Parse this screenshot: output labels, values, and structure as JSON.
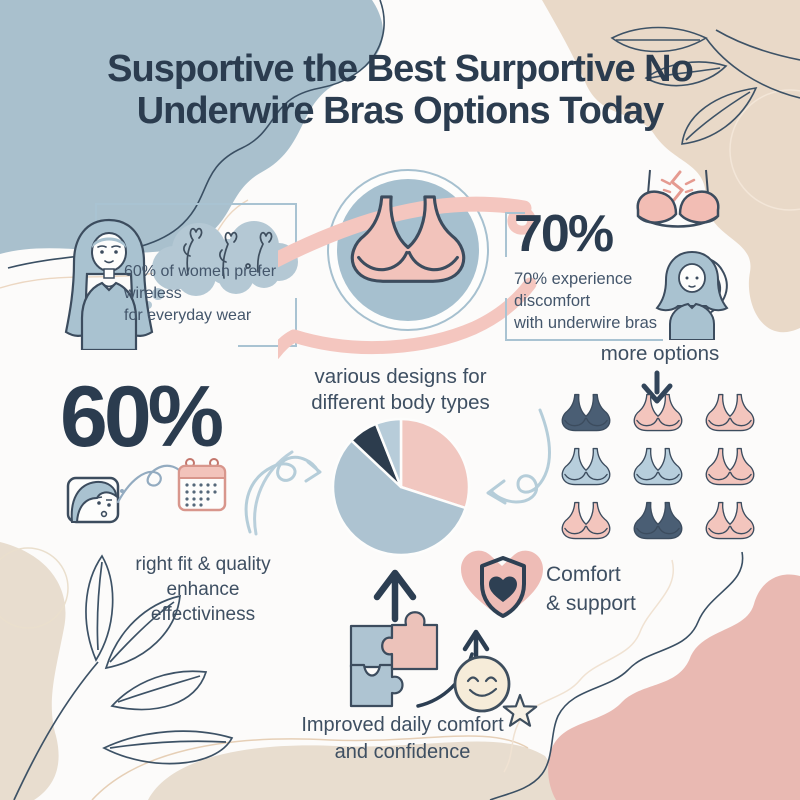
{
  "title": {
    "line1": "Susportive the Best Surportive No",
    "line2": "Underwire Bras Options Today"
  },
  "left_stat": {
    "lines": [
      "60% of women prefer wireless",
      "for everyday wear"
    ]
  },
  "right_stat": {
    "value": "70%",
    "lines": [
      "70% experience discomfort",
      "with underwire bras"
    ]
  },
  "big_stat": {
    "value": "60%",
    "caption_lines": [
      "right fit & quality",
      "enhance",
      "effectiviness"
    ]
  },
  "pie_section": {
    "title_lines": [
      "various designs for",
      "different body types"
    ]
  },
  "options_section": {
    "label": "more options",
    "bra_colors": [
      "navy",
      "pink",
      "pink",
      "lightblue",
      "lightblue",
      "pink",
      "pink",
      "navy",
      "pink"
    ]
  },
  "comfort_badge": {
    "lines": [
      "Comfort",
      "& support"
    ]
  },
  "bottom_caption": {
    "lines": [
      "Improved daily comfort",
      "and confidence"
    ]
  },
  "colors": {
    "navy": "#2e4053",
    "heading": "#2b3c4f",
    "text": "#44566b",
    "pink": "#f3c5bd",
    "blue_gray": "#a9c2d0",
    "light_blue": "#b7cedc",
    "bra_navy": "#4a5e74",
    "beige": "#e9d9c8",
    "beige_soft": "#e8ddcf",
    "pink_blob": "#e9b9b2",
    "cream": "#f6ecd9",
    "frame_blue": "#a9c3d2",
    "background": "#fcfbfa"
  },
  "icons": [
    "thought-cloud-icon",
    "woman-thinking-icon",
    "wireless-bra-emblem-icon",
    "ribbon-icon",
    "underwire-discomfort-bra-icon",
    "woman-discomfort-icon",
    "face-icon",
    "squiggle-icon",
    "calendar-icon",
    "loop-arrow-left-icon",
    "loop-arrow-right-icon",
    "down-arrow-icon",
    "bra-option-icon",
    "up-arrow-icon",
    "puzzle-pieces-icon",
    "heart-shield-icon",
    "swoosh-arrow-icon",
    "smiley-star-icon",
    "leaf-branch-icon"
  ],
  "chart_data": {
    "type": "pie",
    "title": "various designs for different body types",
    "segments": [
      {
        "label": "pink segment",
        "value": 30,
        "color": "#f1c7c0"
      },
      {
        "label": "large blue-gray segment",
        "value": 57,
        "color": "#adc3d1"
      },
      {
        "label": "dark navy segment",
        "value": 7,
        "color": "#2c3c4d"
      },
      {
        "label": "light blue segment",
        "value": 6,
        "color": "#b7ccd9"
      }
    ],
    "start_angle_deg": 0,
    "direction": "clockwise",
    "legend": false
  }
}
